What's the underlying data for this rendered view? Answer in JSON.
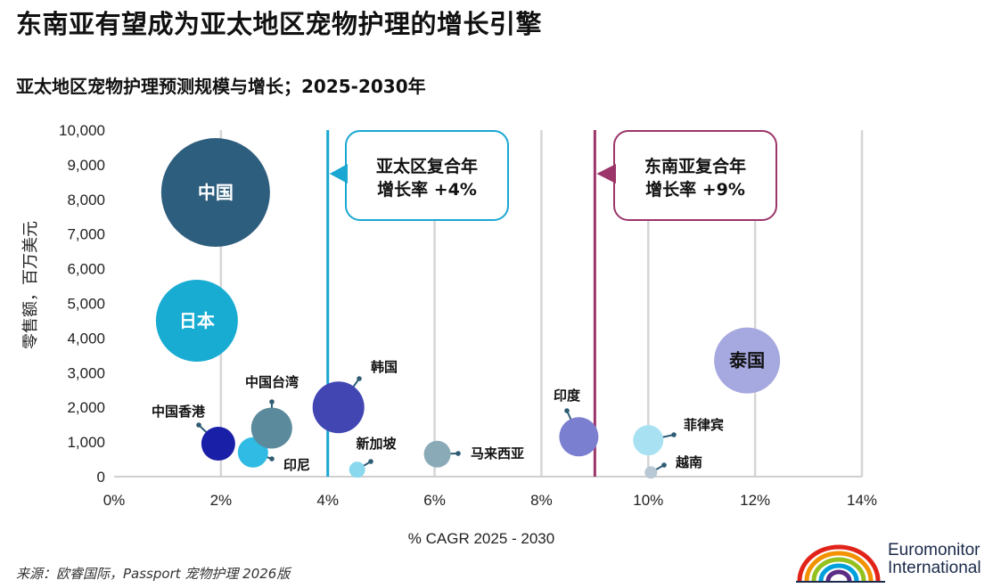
{
  "header": {
    "title": "东南亚有望成为亚太地区宠物护理的增长引擎",
    "subtitle": "亚太地区宠物护理预测规模与增长；2025-2030年"
  },
  "chart_data": {
    "type": "bubble",
    "title": "亚太地区宠物护理预测规模与增长；2025-2030年",
    "xlabel": "% CAGR 2025 - 2030",
    "ylabel": "零售额，百万美元",
    "xlim": [
      0,
      14
    ],
    "ylim": [
      0,
      10000
    ],
    "x_ticks": [
      0,
      2,
      4,
      6,
      8,
      10,
      12,
      14
    ],
    "x_tick_labels": [
      "0%",
      "2%",
      "4%",
      "6%",
      "8%",
      "10%",
      "12%",
      "14%"
    ],
    "y_ticks": [
      0,
      1000,
      2000,
      3000,
      4000,
      5000,
      6000,
      7000,
      8000,
      9000,
      10000
    ],
    "y_tick_labels": [
      "0",
      "1,000",
      "2,000",
      "3,000",
      "4,000",
      "5,000",
      "6,000",
      "7,000",
      "8,000",
      "9,000",
      "10,000"
    ],
    "grid": "vertical",
    "points": [
      {
        "name": "中国",
        "x": 1.9,
        "y": 8200,
        "color": "#2e5e7e",
        "label_inside": true
      },
      {
        "name": "日本",
        "x": 1.55,
        "y": 4500,
        "color": "#19acd3",
        "label_inside": true
      },
      {
        "name": "中国香港",
        "x": 1.95,
        "y": 950,
        "color": "#1a1fa8",
        "label_inside": false
      },
      {
        "name": "印尼",
        "x": 2.6,
        "y": 700,
        "color": "#2fbbe3",
        "label_inside": false
      },
      {
        "name": "中国台湾",
        "x": 2.95,
        "y": 1400,
        "color": "#5b8a9c",
        "label_inside": false
      },
      {
        "name": "韩国",
        "x": 4.2,
        "y": 2000,
        "color": "#4146b3",
        "label_inside": false
      },
      {
        "name": "新加坡",
        "x": 4.55,
        "y": 200,
        "color": "#8ad8ee",
        "label_inside": false
      },
      {
        "name": "马来西亚",
        "x": 6.05,
        "y": 650,
        "color": "#8aaab8",
        "label_inside": false
      },
      {
        "name": "印度",
        "x": 8.7,
        "y": 1150,
        "color": "#7b7fcf",
        "label_inside": false
      },
      {
        "name": "菲律宾",
        "x": 10.0,
        "y": 1050,
        "color": "#a8e2f2",
        "label_inside": false
      },
      {
        "name": "越南",
        "x": 10.05,
        "y": 120,
        "color": "#b8c8d4",
        "label_inside": false
      },
      {
        "name": "泰国",
        "x": 11.85,
        "y": 3350,
        "color": "#a6a8e0",
        "label_inside": true
      }
    ],
    "reference_lines": [
      {
        "x": 4,
        "label_line1": "亚太区复合年",
        "label_line2": "增长率 +4%",
        "color": "#1aa7d2"
      },
      {
        "x": 9,
        "label_line1": "东南亚复合年",
        "label_line2": "增长率 +9%",
        "color": "#9c3569"
      }
    ]
  },
  "footer": {
    "source": "来源：欧睿国际，Passport 宠物护理 2026版",
    "logo_name": "Euromonitor",
    "logo_tagline": "International"
  }
}
